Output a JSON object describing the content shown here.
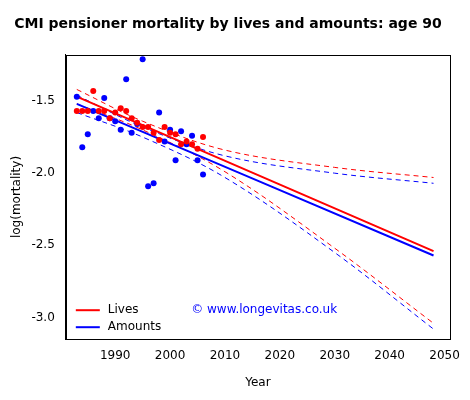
{
  "chart_data": {
    "type": "scatter",
    "title": "CMI pensioner mortality by lives and amounts: age 90",
    "x_label": "Year",
    "y_label": "log(mortality)",
    "annotation": "© www.longevitas.co.uk",
    "xlim": [
      1981,
      2051
    ],
    "xticks": [
      1990,
      2000,
      2010,
      2020,
      2030,
      2040,
      2050
    ],
    "ylim": [
      -3.15,
      -1.18
    ],
    "yticks": [
      {
        "value": -3,
        "label": "-3.0"
      },
      -2.5,
      {
        "value": -2,
        "label": "-2.0"
      },
      -1.5
    ],
    "grid": false,
    "legend": "bottom left",
    "series": [
      {
        "name": "Lives",
        "color": "#ff0000",
        "type": "line",
        "line_style": "solid",
        "x": [
          1983,
          2048
        ],
        "values": [
          -1.47,
          -2.54
        ]
      },
      {
        "name": "Amounts",
        "color": "#0000ff",
        "type": "line",
        "line_style": "solid",
        "x": [
          1983,
          2048
        ],
        "values": [
          -1.52,
          -2.57
        ]
      },
      {
        "color": "#ff0000",
        "type": "line",
        "line_style": "dashed",
        "x": [
          1983,
          1995,
          2010,
          2030,
          2048
        ],
        "values": [
          -1.42,
          -1.64,
          -1.84,
          -1.96,
          -2.03
        ]
      },
      {
        "color": "#ff0000",
        "type": "line",
        "line_style": "dashed",
        "x": [
          1983,
          1995,
          2010,
          2030,
          2048
        ],
        "values": [
          -1.52,
          -1.7,
          -1.99,
          -2.52,
          -3.04
        ]
      },
      {
        "color": "#0000ff",
        "type": "line",
        "line_style": "dashed",
        "x": [
          1983,
          1995,
          2010,
          2030,
          2048
        ],
        "values": [
          -1.46,
          -1.68,
          -1.88,
          -2.0,
          -2.07
        ]
      },
      {
        "color": "#0000ff",
        "type": "line",
        "line_style": "dashed",
        "x": [
          1983,
          1995,
          2010,
          2030,
          2048
        ],
        "values": [
          -1.58,
          -1.75,
          -2.03,
          -2.55,
          -3.08
        ]
      },
      {
        "color": "#ff0000",
        "type": "scatter",
        "marker": "circle",
        "x": [
          1983,
          1984,
          1985,
          1986,
          1987,
          1988,
          1989,
          1990,
          1991,
          1992,
          1993,
          1994,
          1995,
          1996,
          1997,
          1998,
          1999,
          2000,
          2001,
          2002,
          2003,
          2004,
          2005,
          2006
        ],
        "values": [
          -1.57,
          -1.57,
          -1.57,
          -1.43,
          -1.57,
          -1.57,
          -1.62,
          -1.58,
          -1.55,
          -1.57,
          -1.62,
          -1.65,
          -1.68,
          -1.68,
          -1.72,
          -1.77,
          -1.68,
          -1.72,
          -1.73,
          -1.8,
          -1.78,
          -1.8,
          -1.83,
          -1.75
        ]
      },
      {
        "color": "#0000ff",
        "type": "scatter",
        "marker": "circle",
        "x": [
          1983,
          1984,
          1985,
          1986,
          1987,
          1988,
          1989,
          1990,
          1991,
          1992,
          1993,
          1994,
          1995,
          1996,
          1997,
          1998,
          1999,
          2000,
          2001,
          2002,
          2003,
          2004,
          2005,
          2006
        ],
        "values": [
          -1.47,
          -1.82,
          -1.73,
          -1.57,
          -1.62,
          -1.48,
          -1.62,
          -1.64,
          -1.7,
          -1.35,
          -1.72,
          -1.66,
          -1.21,
          -2.09,
          -2.07,
          -1.58,
          -1.78,
          -1.7,
          -1.91,
          -1.71,
          -1.8,
          -1.74,
          -1.91,
          -2.01
        ]
      }
    ]
  }
}
